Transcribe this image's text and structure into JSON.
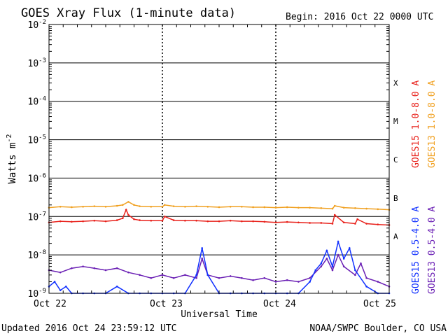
{
  "header": {
    "title": "GOES Xray Flux (1-minute data)",
    "begin": "Begin:  2016 Oct 22 0000 UTC"
  },
  "footer": {
    "updated": "Updated 2016 Oct 24 23:59:12 UTC",
    "credit": "NOAA/SWPC Boulder, CO USA"
  },
  "chart_data": {
    "type": "line",
    "title": "GOES Xray Flux (1-minute data)",
    "xlabel": "Universal Time",
    "ylabel": "Watts m",
    "ylabel_sup": "-2",
    "yscale": "log",
    "ylim": [
      1e-09,
      0.01
    ],
    "xlim": [
      0,
      3
    ],
    "grid": true,
    "x_ticks": [
      {
        "v": 0,
        "label": "Oct 22"
      },
      {
        "v": 1,
        "label": "Oct 23"
      },
      {
        "v": 2,
        "label": "Oct 24"
      },
      {
        "v": 3,
        "label": "Oct 25"
      }
    ],
    "y_ticks": [
      {
        "exp": -9,
        "base": "10",
        "sup": "-9"
      },
      {
        "exp": -8,
        "base": "10",
        "sup": "-8"
      },
      {
        "exp": -7,
        "base": "10",
        "sup": "-7"
      },
      {
        "exp": -6,
        "base": "10",
        "sup": "-6"
      },
      {
        "exp": -5,
        "base": "10",
        "sup": "-5"
      },
      {
        "exp": -4,
        "base": "10",
        "sup": "-4"
      },
      {
        "exp": -3,
        "base": "10",
        "sup": "-3"
      },
      {
        "exp": -2,
        "base": "10",
        "sup": "-2"
      }
    ],
    "flare_classes": [
      {
        "label": "A",
        "exp": -7.5
      },
      {
        "label": "B",
        "exp": -6.5
      },
      {
        "label": "C",
        "exp": -5.5
      },
      {
        "label": "M",
        "exp": -4.5
      },
      {
        "label": "X",
        "exp": -3.5
      }
    ],
    "legend": [
      "GOES15 1.0-8.0 A",
      "GOES13 1.0-8.0 A",
      "GOES15 0.5-4.0 A",
      "GOES13 0.5-4.0 A"
    ],
    "legend_position": "right",
    "colors": {
      "GOES15 1.0-8.0 A": "#e8201a",
      "GOES13 1.0-8.0 A": "#f0a020",
      "GOES15 0.5-4.0 A": "#1030ff",
      "GOES13 0.5-4.0 A": "#6a1fb4"
    },
    "series": [
      {
        "name": "GOES13 1.0-8.0 A",
        "x": [
          0,
          0.1,
          0.2,
          0.3,
          0.4,
          0.5,
          0.6,
          0.65,
          0.7,
          0.75,
          0.8,
          0.9,
          1.0,
          1.02,
          1.1,
          1.2,
          1.3,
          1.4,
          1.5,
          1.6,
          1.7,
          1.8,
          1.9,
          2.0,
          2.1,
          2.2,
          2.3,
          2.4,
          2.5,
          2.52,
          2.6,
          2.7,
          2.8,
          2.9,
          3.0
        ],
        "y": [
          1.7e-07,
          1.8e-07,
          1.75e-07,
          1.8e-07,
          1.85e-07,
          1.8e-07,
          1.9e-07,
          2e-07,
          2.4e-07,
          2e-07,
          1.85e-07,
          1.8e-07,
          1.8e-07,
          2e-07,
          1.85e-07,
          1.8e-07,
          1.85e-07,
          1.8e-07,
          1.75e-07,
          1.8e-07,
          1.8e-07,
          1.75e-07,
          1.75e-07,
          1.7e-07,
          1.75e-07,
          1.7e-07,
          1.7e-07,
          1.65e-07,
          1.6e-07,
          1.9e-07,
          1.7e-07,
          1.65e-07,
          1.6e-07,
          1.55e-07,
          1.5e-07
        ]
      },
      {
        "name": "GOES15 1.0-8.0 A",
        "x": [
          0,
          0.1,
          0.2,
          0.3,
          0.4,
          0.5,
          0.6,
          0.65,
          0.68,
          0.7,
          0.75,
          0.8,
          0.9,
          1.0,
          1.02,
          1.1,
          1.2,
          1.3,
          1.4,
          1.5,
          1.6,
          1.7,
          1.8,
          1.9,
          2.0,
          2.1,
          2.2,
          2.3,
          2.4,
          2.5,
          2.52,
          2.6,
          2.7,
          2.72,
          2.8,
          2.9,
          3.0
        ],
        "y": [
          7e-08,
          7.5e-08,
          7.3e-08,
          7.5e-08,
          7.8e-08,
          7.5e-08,
          8e-08,
          9e-08,
          1.5e-07,
          1.1e-07,
          8.5e-08,
          8e-08,
          7.8e-08,
          7.8e-08,
          1e-07,
          8e-08,
          7.8e-08,
          7.8e-08,
          7.5e-08,
          7.5e-08,
          7.8e-08,
          7.5e-08,
          7.5e-08,
          7.3e-08,
          7e-08,
          7.2e-08,
          7e-08,
          6.8e-08,
          6.8e-08,
          6.5e-08,
          1.1e-07,
          7e-08,
          6.5e-08,
          8.5e-08,
          6.5e-08,
          6.2e-08,
          6e-08
        ]
      },
      {
        "name": "GOES13 0.5-4.0 A",
        "x": [
          0,
          0.1,
          0.2,
          0.3,
          0.4,
          0.5,
          0.6,
          0.7,
          0.8,
          0.9,
          1.0,
          1.1,
          1.2,
          1.3,
          1.35,
          1.4,
          1.5,
          1.6,
          1.7,
          1.8,
          1.9,
          2.0,
          2.1,
          2.2,
          2.3,
          2.4,
          2.45,
          2.5,
          2.55,
          2.6,
          2.7,
          2.75,
          2.8,
          2.9,
          3.0
        ],
        "y": [
          4e-09,
          3.5e-09,
          4.5e-09,
          5e-09,
          4.5e-09,
          4e-09,
          4.5e-09,
          3.5e-09,
          3e-09,
          2.5e-09,
          3e-09,
          2.5e-09,
          3e-09,
          2.5e-09,
          8e-09,
          3e-09,
          2.5e-09,
          2.8e-09,
          2.5e-09,
          2.2e-09,
          2.5e-09,
          2e-09,
          2.2e-09,
          2e-09,
          2.5e-09,
          5e-09,
          8e-09,
          4e-09,
          1e-08,
          5e-09,
          3e-09,
          6e-09,
          2.5e-09,
          2e-09,
          1.5e-09
        ]
      },
      {
        "name": "GOES15 0.5-4.0 A",
        "x": [
          0,
          0.05,
          0.1,
          0.15,
          0.2,
          0.3,
          0.4,
          0.5,
          0.6,
          0.7,
          0.8,
          0.9,
          1.0,
          1.1,
          1.2,
          1.3,
          1.35,
          1.4,
          1.5,
          1.6,
          1.7,
          1.8,
          1.9,
          2.0,
          2.1,
          2.2,
          2.3,
          2.35,
          2.4,
          2.45,
          2.5,
          2.55,
          2.6,
          2.65,
          2.7,
          2.8,
          2.9,
          3.0
        ],
        "y": [
          1.5e-09,
          2e-09,
          1.2e-09,
          1.5e-09,
          1e-09,
          1e-09,
          1e-09,
          1e-09,
          1.5e-09,
          1e-09,
          1e-09,
          1e-09,
          1e-09,
          1e-09,
          1e-09,
          3e-09,
          1.5e-08,
          3e-09,
          1e-09,
          1e-09,
          1e-09,
          1e-09,
          1e-09,
          1e-09,
          1e-09,
          1e-09,
          2e-09,
          4e-09,
          6e-09,
          1.3e-08,
          5e-09,
          2.2e-08,
          8e-09,
          1.5e-08,
          4e-09,
          1.5e-09,
          1e-09,
          1e-09
        ]
      }
    ]
  }
}
